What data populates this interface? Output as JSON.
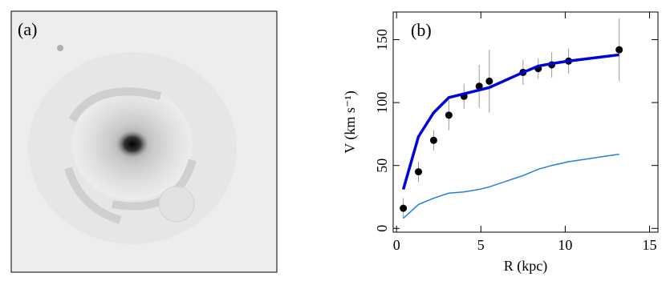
{
  "image_panel": {
    "label": "(a)"
  },
  "chart_data": {
    "type": "scatter",
    "label": "(b)",
    "x_label": "R (kpc)",
    "y_label": "V (km s⁻¹)",
    "xlim": [
      -0.2,
      15.5
    ],
    "ylim": [
      -3,
      172
    ],
    "xticks": [
      0,
      5,
      10,
      15
    ],
    "yticks": [
      0,
      50,
      100,
      150
    ],
    "series": [
      {
        "style": "points",
        "color": "#000000",
        "x": [
          0.4,
          1.3,
          2.2,
          3.1,
          4.0,
          4.9,
          5.5,
          7.5,
          8.4,
          9.2,
          10.2,
          13.2
        ],
        "values": [
          16,
          45,
          70,
          90,
          105,
          113,
          117,
          124,
          127,
          130,
          133,
          142
        ],
        "errors": [
          8,
          8,
          8,
          12,
          10,
          17,
          25,
          10,
          8,
          10,
          10,
          25
        ],
        "error_color": "#999999"
      },
      {
        "style": "line",
        "color": "#0000dd",
        "line_width": 3.5,
        "x": [
          0.4,
          1.3,
          2.2,
          3.1,
          4.0,
          5.5,
          7.5,
          8.4,
          9.2,
          10.2,
          13.2
        ],
        "values": [
          31,
          73,
          92,
          104,
          107,
          112,
          124,
          129,
          131,
          133,
          138
        ]
      },
      {
        "style": "line",
        "color": "#1f7fe0",
        "line_width": 1.5,
        "x": [
          0.4,
          1.3,
          2.2,
          3.1,
          4.0,
          4.9,
          5.5,
          7.5,
          8.4,
          9.2,
          10.2,
          13.2
        ],
        "values": [
          8,
          19,
          24,
          28,
          29,
          31,
          33,
          42,
          47,
          50,
          53,
          59
        ]
      }
    ]
  }
}
